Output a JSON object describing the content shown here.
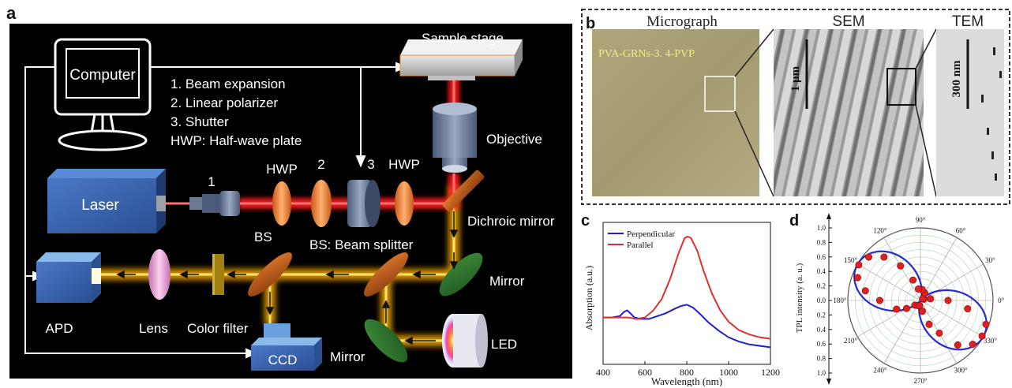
{
  "panels": {
    "a": "a",
    "b": "b",
    "c": "c",
    "d": "d"
  },
  "setup": {
    "computer": "Computer",
    "sample_stage": "Sample stage",
    "objective": "Objective",
    "laser": "Laser",
    "dichroic": "Dichroic mirror",
    "bs_legend": "BS: Beam splitter",
    "bs": "BS",
    "mirror1": "Mirror",
    "mirror2": "Mirror",
    "led": "LED",
    "apd": "APD",
    "lens": "Lens",
    "color_filter": "Color filter",
    "ccd": "CCD",
    "hwp1": "HWP",
    "hwp2": "HWP",
    "n1": "1",
    "n2": "2",
    "n3": "3",
    "legend": [
      "1.   Beam expansion",
      "2.   Linear polarizer",
      "3.   Shutter",
      "HWP: Half-wave plate"
    ]
  },
  "micro": {
    "micrograph": "Micrograph",
    "sem": "SEM",
    "tem": "TEM",
    "sample": "PVA-GRNs-3. 4-PVP",
    "sem_scale": "1 μm",
    "tem_scale": "300 nm"
  },
  "chart_data": [
    {
      "type": "line",
      "xlabel": "Wavelength (nm)",
      "ylabel": "Absorption (a.u.)",
      "xlim": [
        400,
        1200
      ],
      "ylim": [
        0,
        1
      ],
      "x_ticks": [
        400,
        600,
        800,
        1000,
        1200
      ],
      "legend": "top-left",
      "series": [
        {
          "name": "Perpendicular",
          "color": "#1f1fcc",
          "points": [
            [
              400,
              0.33
            ],
            [
              440,
              0.33
            ],
            [
              480,
              0.34
            ],
            [
              500,
              0.37
            ],
            [
              515,
              0.38
            ],
            [
              530,
              0.36
            ],
            [
              550,
              0.33
            ],
            [
              580,
              0.32
            ],
            [
              620,
              0.32
            ],
            [
              660,
              0.34
            ],
            [
              700,
              0.36
            ],
            [
              740,
              0.39
            ],
            [
              770,
              0.41
            ],
            [
              800,
              0.42
            ],
            [
              830,
              0.4
            ],
            [
              860,
              0.36
            ],
            [
              900,
              0.3
            ],
            [
              950,
              0.24
            ],
            [
              1000,
              0.19
            ],
            [
              1050,
              0.16
            ],
            [
              1100,
              0.14
            ],
            [
              1150,
              0.13
            ],
            [
              1200,
              0.12
            ]
          ]
        },
        {
          "name": "Parallel",
          "color": "#e03030",
          "points": [
            [
              400,
              0.33
            ],
            [
              440,
              0.33
            ],
            [
              480,
              0.33
            ],
            [
              520,
              0.33
            ],
            [
              560,
              0.32
            ],
            [
              600,
              0.33
            ],
            [
              640,
              0.38
            ],
            [
              680,
              0.46
            ],
            [
              720,
              0.6
            ],
            [
              760,
              0.78
            ],
            [
              790,
              0.89
            ],
            [
              805,
              0.9
            ],
            [
              820,
              0.89
            ],
            [
              850,
              0.8
            ],
            [
              880,
              0.66
            ],
            [
              920,
              0.5
            ],
            [
              960,
              0.38
            ],
            [
              1000,
              0.3
            ],
            [
              1050,
              0.24
            ],
            [
              1100,
              0.21
            ],
            [
              1150,
              0.19
            ],
            [
              1200,
              0.18
            ]
          ]
        }
      ]
    },
    {
      "type": "scatter",
      "subtype": "polar",
      "ylabel": "TPL intensity (a. u.)",
      "r_ticks": [
        "1.0",
        "0.8",
        "0.6",
        "0.4",
        "0.2",
        "0.0",
        "0.2",
        "0.4",
        "0.6",
        "0.8",
        "1.0"
      ],
      "angle_labels": [
        {
          "deg": 0,
          "label": "0°"
        },
        {
          "deg": 30,
          "label": "30°"
        },
        {
          "deg": 60,
          "label": "60°"
        },
        {
          "deg": 90,
          "label": "90°"
        },
        {
          "deg": 120,
          "label": "120°"
        },
        {
          "deg": 150,
          "label": "150°"
        },
        {
          "deg": 180,
          "label": "180°"
        },
        {
          "deg": 210,
          "label": "210°"
        },
        {
          "deg": 240,
          "label": "240°"
        },
        {
          "deg": 270,
          "label": "270°"
        },
        {
          "deg": 300,
          "label": "300°"
        },
        {
          "deg": 330,
          "label": "330°"
        }
      ],
      "fit": {
        "peak_angle": 150,
        "amplitude": 1.0
      },
      "points": [
        [
          0,
          0.38
        ],
        [
          10,
          0.14
        ],
        [
          20,
          0.05
        ],
        [
          40,
          0.04
        ],
        [
          60,
          0.12
        ],
        [
          80,
          0.15
        ],
        [
          100,
          0.16
        ],
        [
          110,
          0.3
        ],
        [
          120,
          0.55
        ],
        [
          130,
          0.78
        ],
        [
          140,
          0.93
        ],
        [
          150,
          0.98
        ],
        [
          160,
          0.92
        ],
        [
          170,
          0.77
        ],
        [
          180,
          0.56
        ],
        [
          200,
          0.35
        ],
        [
          210,
          0.22
        ],
        [
          220,
          0.1
        ],
        [
          240,
          0.08
        ],
        [
          260,
          0.07
        ],
        [
          280,
          0.15
        ],
        [
          290,
          0.35
        ],
        [
          300,
          0.52
        ],
        [
          310,
          0.8
        ],
        [
          320,
          0.94
        ],
        [
          330,
          0.98
        ],
        [
          340,
          0.96
        ],
        [
          350,
          0.66
        ]
      ]
    }
  ]
}
